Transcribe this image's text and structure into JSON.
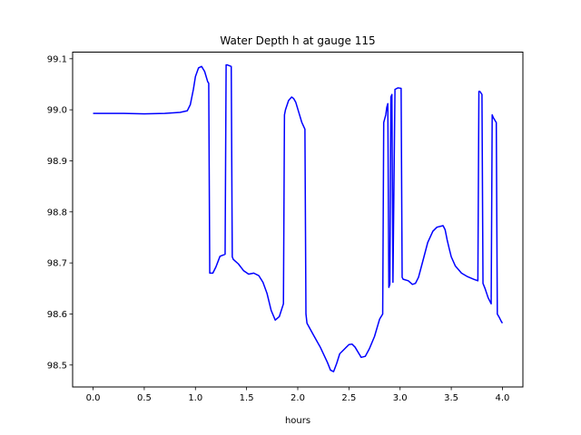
{
  "chart_data": {
    "type": "line",
    "title": "Water Depth h at gauge 115",
    "xlabel": "hours",
    "ylabel": "",
    "xlim": [
      -0.2,
      4.2
    ],
    "ylim": [
      98.457,
      99.113
    ],
    "xticks": [
      0.0,
      0.5,
      1.0,
      1.5,
      2.0,
      2.5,
      3.0,
      3.5,
      4.0
    ],
    "xtick_labels": [
      "0.0",
      "0.5",
      "1.0",
      "1.5",
      "2.0",
      "2.5",
      "3.0",
      "3.5",
      "4.0"
    ],
    "yticks": [
      98.5,
      98.6,
      98.7,
      98.8,
      98.9,
      99.0,
      99.1
    ],
    "ytick_labels": [
      "98.5",
      "98.6",
      "98.7",
      "98.8",
      "98.9",
      "99.0",
      "99.1"
    ],
    "grid": false,
    "series": [
      {
        "color": "#0000ff",
        "x": [
          0.0,
          0.3,
          0.5,
          0.7,
          0.85,
          0.92,
          0.95,
          0.98,
          1.0,
          1.03,
          1.06,
          1.09,
          1.12,
          1.13,
          1.14,
          1.17,
          1.2,
          1.24,
          1.29,
          1.3,
          1.31,
          1.35,
          1.36,
          1.37,
          1.42,
          1.47,
          1.52,
          1.57,
          1.62,
          1.66,
          1.7,
          1.74,
          1.78,
          1.82,
          1.86,
          1.87,
          1.88,
          1.91,
          1.94,
          1.96,
          1.98,
          2.01,
          2.04,
          2.07,
          2.08,
          2.09,
          2.15,
          2.22,
          2.29,
          2.32,
          2.35,
          2.38,
          2.41,
          2.45,
          2.5,
          2.53,
          2.56,
          2.62,
          2.66,
          2.7,
          2.75,
          2.8,
          2.83,
          2.84,
          2.86,
          2.87,
          2.88,
          2.89,
          2.9,
          2.91,
          2.92,
          2.93,
          2.95,
          2.98,
          3.01,
          3.02,
          3.03,
          3.08,
          3.12,
          3.15,
          3.18,
          3.22,
          3.27,
          3.32,
          3.36,
          3.42,
          3.44,
          3.46,
          3.48,
          3.5,
          3.54,
          3.6,
          3.66,
          3.72,
          3.76,
          3.77,
          3.78,
          3.8,
          3.81,
          3.83,
          3.86,
          3.89,
          3.9,
          3.91,
          3.94,
          3.95,
          3.97,
          3.99,
          4.0
        ],
        "y": [
          98.993,
          98.993,
          98.992,
          98.993,
          98.995,
          98.998,
          99.01,
          99.04,
          99.065,
          99.082,
          99.085,
          99.075,
          99.055,
          99.052,
          98.68,
          98.68,
          98.692,
          98.713,
          98.717,
          99.088,
          99.088,
          99.085,
          98.712,
          98.707,
          98.698,
          98.685,
          98.678,
          98.68,
          98.675,
          98.662,
          98.64,
          98.607,
          98.588,
          98.595,
          98.62,
          98.99,
          99.0,
          99.018,
          99.025,
          99.022,
          99.015,
          98.995,
          98.975,
          98.962,
          98.6,
          98.582,
          98.56,
          98.535,
          98.505,
          98.49,
          98.487,
          98.503,
          98.522,
          98.53,
          98.54,
          98.541,
          98.535,
          98.515,
          98.517,
          98.532,
          98.556,
          98.59,
          98.6,
          98.975,
          98.99,
          99.005,
          99.012,
          98.652,
          98.658,
          99.025,
          99.03,
          98.662,
          99.04,
          99.043,
          99.042,
          98.672,
          98.668,
          98.665,
          98.658,
          98.66,
          98.672,
          98.702,
          98.74,
          98.762,
          98.77,
          98.773,
          98.765,
          98.745,
          98.728,
          98.712,
          98.694,
          98.68,
          98.673,
          98.668,
          98.665,
          99.036,
          99.036,
          99.03,
          98.66,
          98.65,
          98.632,
          98.62,
          98.99,
          98.985,
          98.975,
          98.6,
          98.593,
          98.585,
          98.582
        ]
      }
    ]
  }
}
